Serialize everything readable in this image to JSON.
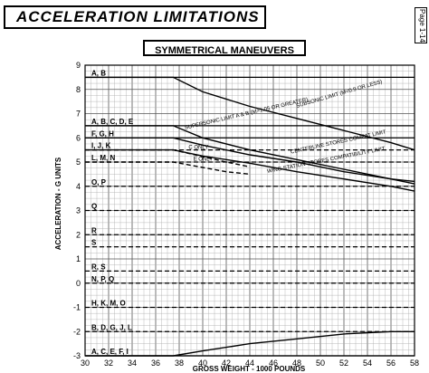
{
  "page": {
    "title": "ACCELERATION LIMITATIONS",
    "subtitle": "SYMMETRICAL MANEUVERS",
    "corner_label": "Page 1-14"
  },
  "chart_data": {
    "type": "line",
    "xlabel": "GROSS WEIGHT - 1000 POUNDS",
    "ylabel": "ACCELERATION - G UNITS",
    "xlim": [
      30,
      58
    ],
    "ylim": [
      -3,
      9
    ],
    "x_ticks": [
      30,
      32,
      34,
      36,
      38,
      40,
      42,
      44,
      46,
      48,
      50,
      52,
      54,
      56,
      58
    ],
    "y_ticks": [
      -3,
      -2,
      -1,
      0,
      1,
      2,
      3,
      4,
      5,
      6,
      7,
      8,
      9
    ],
    "grid": true,
    "series": [
      {
        "name": "SUBSONIC LIMIT (M=0.9 OR LESS)",
        "style": "solid",
        "x": [
          30,
          37.5,
          40,
          44,
          48,
          52,
          56,
          58
        ],
        "y": [
          8.5,
          8.5,
          7.9,
          7.3,
          6.8,
          6.3,
          5.8,
          5.5
        ]
      },
      {
        "name": "SUPERSONIC LIMIT A & B (M=1.05 OR GREATER)",
        "style": "solid",
        "x": [
          30,
          37.5,
          40,
          44,
          48,
          52,
          56,
          58
        ],
        "y": [
          6.5,
          6.5,
          6.0,
          5.5,
          5.1,
          4.7,
          4.3,
          4.1
        ]
      },
      {
        "name": "CENTERLINE STORES COMPAT LIMIT",
        "style": "solid",
        "x": [
          30,
          37.5,
          40,
          44,
          48,
          52,
          56,
          58
        ],
        "y": [
          6.0,
          6.0,
          5.7,
          5.3,
          5.0,
          4.6,
          4.3,
          4.2
        ]
      },
      {
        "name": "WING STATION STORES COMPATIBILITY LIMIT",
        "style": "solid",
        "x": [
          30,
          37.5,
          40,
          44,
          48,
          52,
          56,
          58
        ],
        "y": [
          5.5,
          5.5,
          5.25,
          4.95,
          4.6,
          4.3,
          4.0,
          3.8
        ]
      },
      {
        "name": "C ONLY",
        "style": "dashed",
        "x": [
          30,
          37.5,
          42,
          44
        ],
        "y": [
          5.5,
          5.5,
          5.0,
          4.8
        ]
      },
      {
        "name": "E ONLY",
        "style": "dashed",
        "x": [
          30,
          37.5,
          42,
          44
        ],
        "y": [
          5.0,
          5.0,
          4.6,
          4.5
        ]
      },
      {
        "name": "A, C, E, F, I",
        "style": "solid",
        "x": [
          30,
          37.5,
          40,
          44,
          48,
          52,
          56,
          58
        ],
        "y": [
          -3.0,
          -3.0,
          -2.8,
          -2.5,
          -2.3,
          -2.1,
          -2.0,
          -2.0
        ]
      }
    ],
    "segment_lines": [
      {
        "label": "A, B",
        "y": 8.5,
        "style": "solid"
      },
      {
        "label": "A, B, C, D, E",
        "y": 6.5,
        "style": "solid"
      },
      {
        "label": "F, G, H",
        "y": 6.0,
        "style": "solid"
      },
      {
        "label": "I, J, K",
        "y": 5.5,
        "style": "dashed"
      },
      {
        "label": "L, M, N",
        "y": 5.0,
        "style": "dashed"
      },
      {
        "label": "O, P",
        "y": 4.0,
        "style": "dashed"
      },
      {
        "label": "Q",
        "y": 3.0,
        "style": "dashed"
      },
      {
        "label": "R",
        "y": 2.0,
        "style": "dashed"
      },
      {
        "label": "S",
        "y": 1.5,
        "style": "dashed"
      },
      {
        "label": "R, S",
        "y": 0.5,
        "style": "dashed"
      },
      {
        "label": "N, P, Q",
        "y": 0.0,
        "style": "dashed"
      },
      {
        "label": "H, K, M, O",
        "y": -1.0,
        "style": "dashed"
      },
      {
        "label": "B, D, G, J, L",
        "y": -2.0,
        "style": "dashed"
      },
      {
        "label": "A, C, E, F, I",
        "y": -3.0,
        "style": "solid"
      }
    ],
    "annotations": [
      {
        "text": "SUBSONIC LIMIT (M=0.9 OR LESS)"
      },
      {
        "text": "SUPERSONIC LIMIT A & B (M=1.05 OR GREATER)"
      },
      {
        "text": "CENTERLINE STORES COMPAT LIMIT"
      },
      {
        "text": "WING STATION STORES COMPATIBILITY LIMIT"
      },
      {
        "text": "C ONLY"
      },
      {
        "text": "E ONLY"
      }
    ]
  }
}
